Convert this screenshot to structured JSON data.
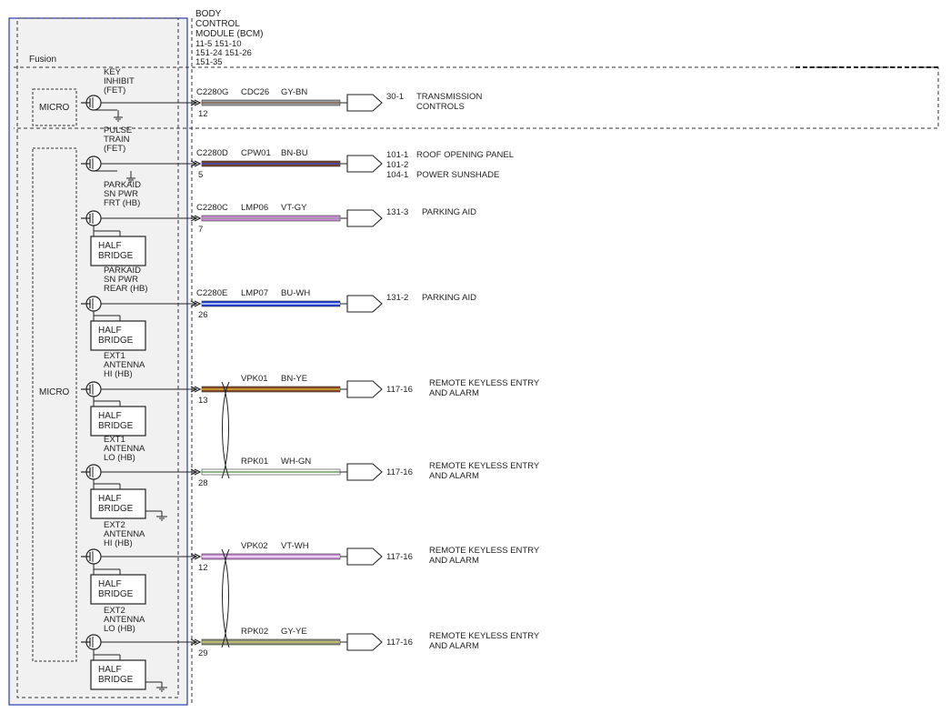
{
  "module": {
    "title_lines": [
      "BODY",
      "CONTROL",
      "MODULE (BCM)"
    ],
    "ref_lines": [
      "11-5      151-10",
      "151-24   151-26",
      "151-35"
    ],
    "vehicle_label": "Fusion"
  },
  "circuits": [
    {
      "driver_lines": [
        "KEY",
        "INHIBIT",
        "(FET)"
      ],
      "driver_type": "FET",
      "connector": "C2280G",
      "pin": "12",
      "circuit_id": "CDC26",
      "wire_color_code": "GY-BN",
      "wire_colors": [
        "#9aa0a6",
        "#8a5a3c"
      ],
      "destinations": [
        {
          "ref": "30-1",
          "name": "TRANSMISSION"
        },
        {
          "ref": "",
          "name": "CONTROLS"
        }
      ]
    },
    {
      "driver_lines": [
        "PULSE",
        "TRAIN",
        "(FET)"
      ],
      "driver_type": "FET",
      "connector": "C2280D",
      "pin": "5",
      "circuit_id": "CPW01",
      "wire_color_code": "BN-BU",
      "wire_colors": [
        "#7b3f2a",
        "#2a55d9"
      ],
      "destinations": [
        {
          "ref": "101-1",
          "name": "ROOF OPENING PANEL"
        },
        {
          "ref": "101-2",
          "name": ""
        },
        {
          "ref": "104-1",
          "name": "POWER SUNSHADE"
        }
      ]
    },
    {
      "driver_lines": [
        "PARKAID",
        "SN PWR",
        "FRT (HB)"
      ],
      "driver_type": "HB",
      "connector": "C2280C",
      "pin": "7",
      "circuit_id": "LMP06",
      "wire_color_code": "VT-GY",
      "wire_colors": [
        "#c98ad6",
        "#9aa0a6"
      ],
      "destinations": [
        {
          "ref": "131-3",
          "name": "PARKING AID"
        }
      ]
    },
    {
      "driver_lines": [
        "PARKAID",
        "SN PWR",
        "REAR (HB)"
      ],
      "driver_type": "HB",
      "connector": "C2280E",
      "pin": "26",
      "circuit_id": "LMP07",
      "wire_color_code": "BU-WH",
      "wire_colors": [
        "#1f3fd6",
        "#ffffff"
      ],
      "destinations": [
        {
          "ref": "131-2",
          "name": "PARKING AID"
        }
      ]
    },
    {
      "driver_lines": [
        "EXT1",
        "ANTENNA",
        "HI (HB)"
      ],
      "driver_type": "HB",
      "connector": "",
      "pin": "13",
      "circuit_id": "VPK01",
      "wire_color_code": "BN-YE",
      "wire_colors": [
        "#8a4a2a",
        "#e0c030"
      ],
      "destinations": [
        {
          "ref": "117-16",
          "name": "REMOTE KEYLESS ENTRY"
        },
        {
          "ref": "",
          "name": "AND ALARM"
        }
      ]
    },
    {
      "driver_lines": [
        "EXT1",
        "ANTENNA",
        "LO (HB)"
      ],
      "driver_type": "HB",
      "connector": "",
      "pin": "28",
      "circuit_id": "RPK01",
      "wire_color_code": "WH-GN",
      "wire_colors": [
        "#ffffff",
        "#4a8a3a"
      ],
      "destinations": [
        {
          "ref": "117-16",
          "name": "REMOTE KEYLESS ENTRY"
        },
        {
          "ref": "",
          "name": "AND ALARM"
        }
      ]
    },
    {
      "driver_lines": [
        "EXT2",
        "ANTENNA",
        "HI (HB)"
      ],
      "driver_type": "HB",
      "connector": "",
      "pin": "12",
      "circuit_id": "VPK02",
      "wire_color_code": "VT-WH",
      "wire_colors": [
        "#c98ad6",
        "#ffffff"
      ],
      "destinations": [
        {
          "ref": "117-16",
          "name": "REMOTE KEYLESS ENTRY"
        },
        {
          "ref": "",
          "name": "AND ALARM"
        }
      ]
    },
    {
      "driver_lines": [
        "EXT2",
        "ANTENNA",
        "LO (HB)"
      ],
      "driver_type": "HB",
      "connector": "",
      "pin": "29",
      "circuit_id": "RPK02",
      "wire_color_code": "GY-YE",
      "wire_colors": [
        "#8a8f80",
        "#d8d060"
      ],
      "destinations": [
        {
          "ref": "117-16",
          "name": "REMOTE KEYLESS ENTRY"
        },
        {
          "ref": "",
          "name": "AND ALARM"
        }
      ]
    }
  ],
  "blocks": {
    "micro_label": "MICRO",
    "half_bridge_lines": [
      "HALF",
      "BRIDGE"
    ]
  },
  "colors": {
    "module_border": "#2a3db0",
    "module_fill": "#f1f1f1",
    "line": "#222222"
  }
}
